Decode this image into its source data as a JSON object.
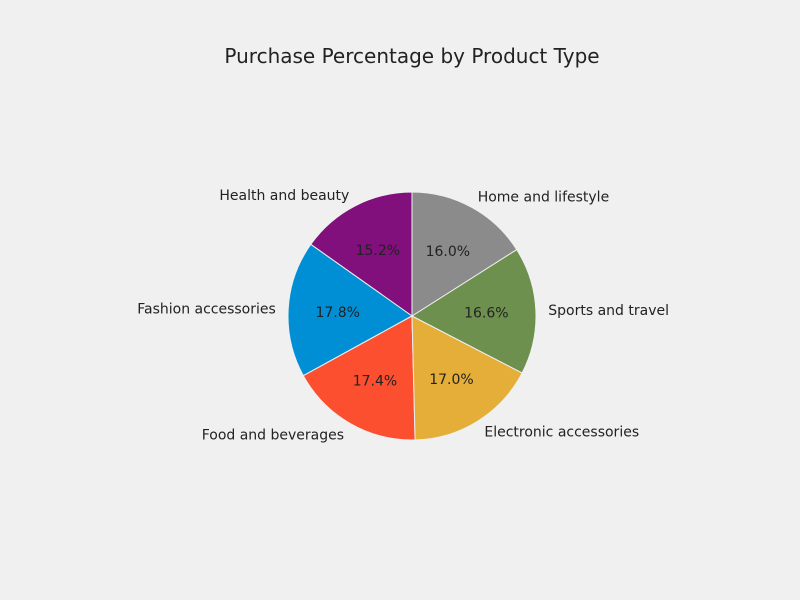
{
  "chart_data": {
    "type": "pie",
    "title": "Purchase Percentage by Product Type",
    "start_angle_deg": 90,
    "direction": "counterclockwise",
    "slices": [
      {
        "label": "Health and beauty",
        "value": 15.2,
        "pct_text": "15.2%",
        "color": "#810f7c"
      },
      {
        "label": "Fashion accessories",
        "value": 17.8,
        "pct_text": "17.8%",
        "color": "#008fd5"
      },
      {
        "label": "Food and beverages",
        "value": 17.4,
        "pct_text": "17.4%",
        "color": "#fc4f30"
      },
      {
        "label": "Electronic accessories",
        "value": 17.0,
        "pct_text": "17.0%",
        "color": "#e5ae38"
      },
      {
        "label": "Sports and travel",
        "value": 16.6,
        "pct_text": "16.6%",
        "color": "#6d904f"
      },
      {
        "label": "Home and lifestyle",
        "value": 16.0,
        "pct_text": "16.0%",
        "color": "#8b8b8b"
      }
    ]
  }
}
